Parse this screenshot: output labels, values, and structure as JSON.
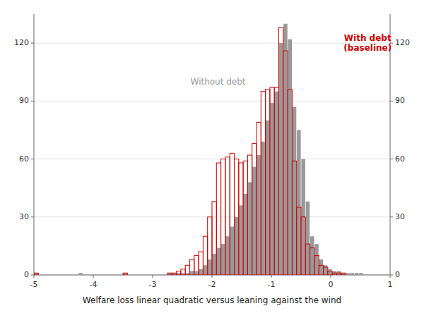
{
  "chart_data": {
    "type": "histogram",
    "xlabel": "Welfare loss linear quadratic versus leaning against the wind",
    "xlim": [
      -5,
      1
    ],
    "ylim": [
      0,
      135
    ],
    "yticks": [
      0,
      30,
      60,
      90,
      120
    ],
    "y2lim": [
      0,
      135
    ],
    "y2ticks": [
      0,
      30,
      60,
      90,
      120
    ],
    "xticks": [
      -5,
      -4,
      -3,
      -2,
      -1,
      0,
      1
    ],
    "grid": true,
    "bins": [
      -5,
      -4.925,
      -4.85,
      -4.775,
      -4.7,
      -4.625,
      -4.55,
      -4.475,
      -4.4,
      -4.325,
      -4.25,
      -4.175,
      -4.1,
      -4.025,
      -3.95,
      -3.875,
      -3.8,
      -3.725,
      -3.65,
      -3.575,
      -3.5,
      -3.425,
      -3.35,
      -3.275,
      -3.2,
      -3.125,
      -3.05,
      -2.975,
      -2.9,
      -2.825,
      -2.75,
      -2.675,
      -2.6,
      -2.525,
      -2.45,
      -2.375,
      -2.3,
      -2.225,
      -2.15,
      -2.075,
      -2,
      -1.925,
      -1.85,
      -1.775,
      -1.7,
      -1.625,
      -1.55,
      -1.475,
      -1.4,
      -1.325,
      -1.25,
      -1.175,
      -1.1,
      -1.025,
      -0.95,
      -0.875,
      -0.8,
      -0.725,
      -0.65,
      -0.575,
      -0.5,
      -0.425,
      -0.35,
      -0.275,
      -0.2,
      -0.125,
      -0.05,
      0.025,
      0.1,
      0.175,
      0.25,
      0.325,
      0.4,
      0.475,
      0.55,
      0.625,
      0.7,
      0.775,
      0.85,
      0.925,
      1
    ],
    "series": [
      {
        "name": "Without debt",
        "color": "#999999",
        "values": [
          1,
          0,
          0,
          0,
          0,
          0,
          0,
          0,
          0,
          0,
          1,
          0,
          0,
          0,
          0,
          0,
          0,
          0,
          0,
          0,
          1,
          0,
          0,
          0,
          0,
          0,
          0,
          0,
          0,
          0,
          1,
          1,
          1,
          1,
          1,
          2,
          2,
          3,
          5,
          8,
          11,
          14,
          16,
          20,
          25,
          30,
          36,
          42,
          48,
          56,
          62,
          69,
          80,
          89,
          95,
          120,
          130,
          122,
          87,
          75,
          60,
          38,
          20,
          16,
          8,
          5,
          3,
          2,
          2,
          1,
          1,
          1,
          1,
          1,
          0,
          0,
          0,
          0,
          0,
          0
        ]
      },
      {
        "name": "With debt\n(baseline)",
        "color": "#cc0000",
        "values": [
          1,
          0,
          0,
          0,
          0,
          0,
          0,
          0,
          0,
          0,
          0,
          0,
          0,
          0,
          0,
          0,
          0,
          0,
          0,
          0,
          1,
          0,
          0,
          0,
          0,
          0,
          0,
          0,
          0,
          0,
          1,
          1,
          2,
          3,
          5,
          8,
          10,
          12,
          20,
          30,
          38,
          58,
          60,
          61,
          63,
          60,
          58,
          59,
          62,
          68,
          79,
          95,
          96,
          97,
          97,
          128,
          116,
          96,
          59,
          35,
          30,
          16,
          14,
          10,
          5,
          4,
          2,
          1,
          1,
          1,
          0,
          0,
          0,
          0,
          0,
          0,
          0,
          0,
          0,
          0
        ]
      }
    ]
  }
}
